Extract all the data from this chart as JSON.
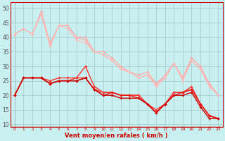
{
  "title": "",
  "xlabel": "Vent moyen/en rafales ( km/h )",
  "background_color": "#c8f0f0",
  "grid_color": "#a0c8c8",
  "x_ticks": [
    0,
    1,
    2,
    3,
    4,
    5,
    6,
    7,
    8,
    9,
    10,
    11,
    12,
    13,
    14,
    15,
    16,
    17,
    18,
    19,
    20,
    21,
    22,
    23
  ],
  "y_ticks": [
    10,
    15,
    20,
    25,
    30,
    35,
    40,
    45,
    50
  ],
  "ylim": [
    9,
    52
  ],
  "xlim": [
    -0.5,
    23.5
  ],
  "series": [
    {
      "color": "#ffaaaa",
      "lw": 0.9,
      "marker": "D",
      "markersize": 2.0,
      "data_x": [
        0,
        1,
        2,
        3,
        4,
        5,
        6,
        7,
        8,
        9,
        10,
        11,
        12,
        13,
        14,
        15,
        16,
        17,
        18,
        19,
        20,
        21,
        22,
        23
      ],
      "data_y": [
        41,
        43,
        41,
        49,
        38,
        44,
        44,
        40,
        40,
        35,
        35,
        33,
        30,
        28,
        27,
        28,
        24,
        27,
        31,
        26,
        33,
        30,
        24,
        20
      ]
    },
    {
      "color": "#ffaaaa",
      "lw": 0.9,
      "marker": "D",
      "markersize": 2.0,
      "data_x": [
        0,
        1,
        2,
        3,
        4,
        5,
        6,
        7,
        8,
        9,
        10,
        11,
        12,
        13,
        14,
        15,
        16,
        17,
        18,
        19,
        20,
        21,
        22,
        23
      ],
      "data_y": [
        41,
        43,
        41,
        48,
        37,
        44,
        44,
        40,
        39,
        35,
        34,
        32,
        29,
        28,
        26,
        27,
        24,
        26,
        31,
        26,
        32,
        29,
        24,
        20
      ]
    },
    {
      "color": "#ffbbbb",
      "lw": 0.9,
      "marker": "D",
      "markersize": 2.0,
      "data_x": [
        0,
        1,
        2,
        3,
        4,
        5,
        6,
        7,
        8,
        9,
        10,
        11,
        12,
        13,
        14,
        15,
        16,
        17,
        18,
        19,
        20,
        21,
        22,
        23
      ],
      "data_y": [
        41,
        43,
        41,
        48,
        37,
        44,
        43,
        39,
        38,
        35,
        34,
        32,
        29,
        28,
        26,
        27,
        23,
        26,
        31,
        25,
        32,
        29,
        23,
        20
      ]
    },
    {
      "color": "#ff3333",
      "lw": 1.0,
      "marker": "D",
      "markersize": 2.0,
      "data_x": [
        0,
        1,
        2,
        3,
        4,
        5,
        6,
        7,
        8,
        9,
        10,
        11,
        12,
        13,
        14,
        15,
        16,
        17,
        18,
        19,
        20,
        21,
        22,
        23
      ],
      "data_y": [
        20,
        26,
        26,
        26,
        25,
        26,
        26,
        26,
        30,
        23,
        21,
        21,
        20,
        20,
        20,
        17,
        15,
        17,
        21,
        21,
        23,
        17,
        13,
        12
      ]
    },
    {
      "color": "#ff3333",
      "lw": 1.0,
      "marker": "D",
      "markersize": 2.0,
      "data_x": [
        0,
        1,
        2,
        3,
        4,
        5,
        6,
        7,
        8,
        9,
        10,
        11,
        12,
        13,
        14,
        15,
        16,
        17,
        18,
        19,
        20,
        21,
        22,
        23
      ],
      "data_y": [
        20,
        26,
        26,
        26,
        24,
        25,
        25,
        26,
        26,
        22,
        21,
        21,
        20,
        20,
        20,
        17,
        14,
        17,
        21,
        21,
        22,
        17,
        13,
        12
      ]
    },
    {
      "color": "#ee1111",
      "lw": 1.0,
      "marker": "D",
      "markersize": 2.0,
      "data_x": [
        0,
        1,
        2,
        3,
        4,
        5,
        6,
        7,
        8,
        9,
        10,
        11,
        12,
        13,
        14,
        15,
        16,
        17,
        18,
        19,
        20,
        21,
        22,
        23
      ],
      "data_y": [
        20,
        26,
        26,
        26,
        24,
        25,
        25,
        25,
        26,
        22,
        20,
        21,
        20,
        20,
        19,
        17,
        14,
        17,
        20,
        21,
        22,
        17,
        13,
        12
      ]
    },
    {
      "color": "#cc0000",
      "lw": 1.0,
      "marker": "D",
      "markersize": 2.0,
      "data_x": [
        0,
        1,
        2,
        3,
        4,
        5,
        6,
        7,
        8,
        9,
        10,
        11,
        12,
        13,
        14,
        15,
        16,
        17,
        18,
        19,
        20,
        21,
        22,
        23
      ],
      "data_y": [
        20,
        26,
        26,
        26,
        24,
        25,
        25,
        25,
        26,
        22,
        20,
        20,
        19,
        19,
        19,
        17,
        14,
        17,
        20,
        20,
        21,
        16,
        12,
        12
      ]
    }
  ],
  "arrow_color": "#cc0000",
  "xlabel_color": "#cc0000",
  "tick_color_x": "#cc0000",
  "tick_color_y": "#555555",
  "spine_color": "#cc0000",
  "xlabel_fontsize": 6.0,
  "xtick_fontsize": 4.2,
  "ytick_fontsize": 5.5
}
